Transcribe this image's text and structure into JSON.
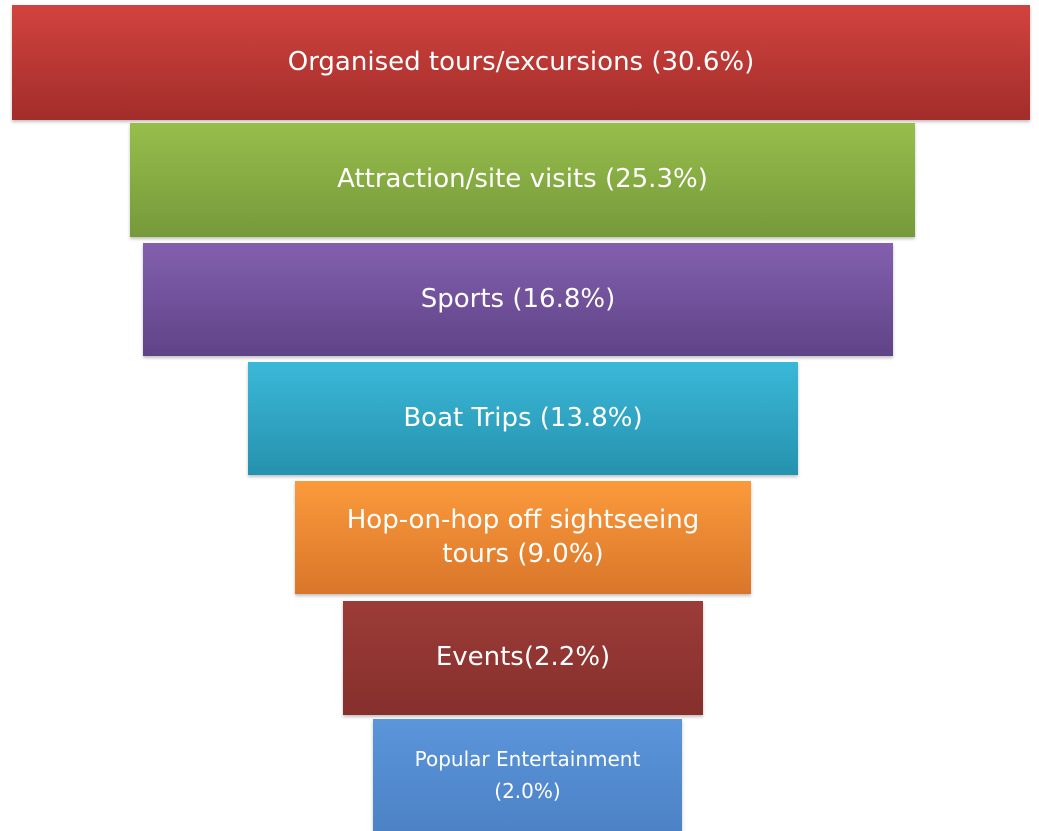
{
  "nodes": [
    {
      "label": "Organised tours/excursions (30.6%)"
    },
    {
      "label": "Attraction/site visits (25.3%)"
    },
    {
      "label": "Sports (16.8%)"
    },
    {
      "label": "Boat Trips (13.8%)"
    },
    {
      "label": "Hop-on-hop off sightseeing tours (9.0%)"
    },
    {
      "label": "Events(2.2%)"
    },
    {
      "label": "Popular Entertainment (2.0%)"
    }
  ]
}
